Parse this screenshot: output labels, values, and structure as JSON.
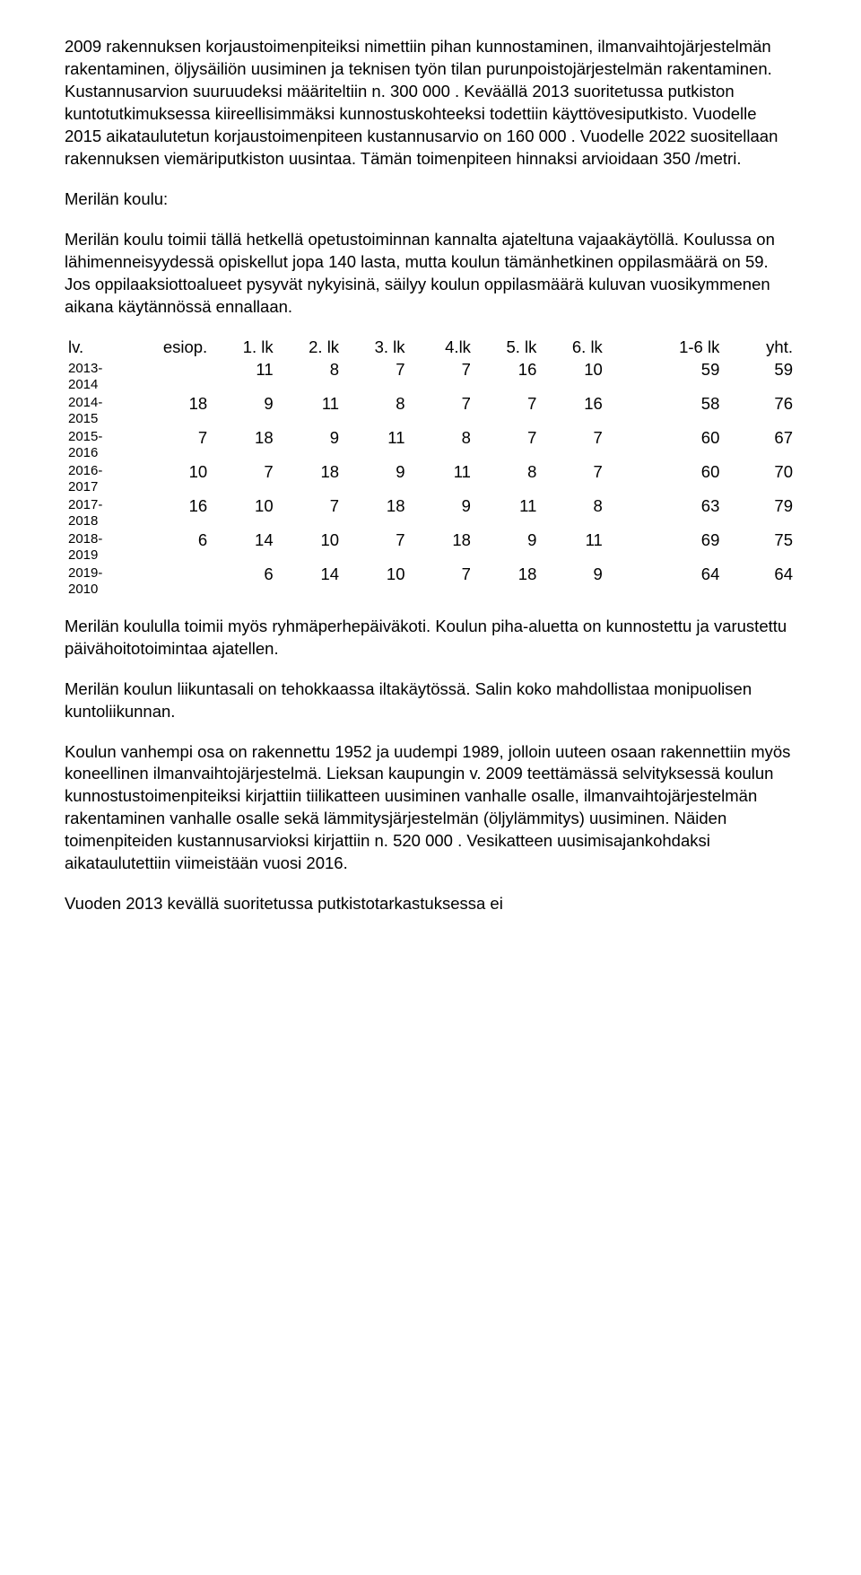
{
  "paragraphs": {
    "p1": "2009 rakennuksen korjaustoimenpiteiksi nimettiin pihan kunnostaminen, ilmanvaihtojärjestelmän rakentaminen, öljysäiliön uusiminen ja teknisen työn tilan purunpoistojärjestelmän rakentaminen. Kustannusarvion suuruudeksi määriteltiin n. 300 000 . Keväällä 2013 suoritetussa putkiston kuntotutkimuksessa kiireellisimmäksi kunnostuskohteeksi todettiin käyttövesiputkisto. Vuodelle 2015 aikataulutetun korjaustoimenpiteen kustannusarvio on 160 000 . Vuodelle 2022 suositellaan rakennuksen viemäriputkiston uusintaa. Tämän toimenpiteen hinnaksi arvioidaan 350 /metri.",
    "p2": "Merilän koulu:",
    "p3": "Merilän koulu toimii tällä hetkellä opetustoiminnan kannalta ajateltuna vajaakäytöllä. Koulussa on lähimenneisyydessä opiskellut jopa 140 lasta, mutta koulun tämänhetkinen oppilasmäärä on 59. Jos oppilaaksiottoalueet pysyvät nykyisinä, säilyy koulun oppilasmäärä kuluvan vuosikymmenen aikana käytännössä ennallaan.",
    "p4": "Merilän koululla toimii myös ryhmäperhepäiväkoti. Koulun piha-aluetta on kunnostettu ja varustettu päivähoitotoimintaa ajatellen.",
    "p5": "Merilän koulun liikuntasali on tehokkaassa iltakäytössä. Salin koko mahdollistaa monipuolisen kuntoliikunnan.",
    "p6": "Koulun vanhempi osa on rakennettu 1952 ja uudempi 1989, jolloin uuteen osaan rakennettiin myös koneellinen ilmanvaihtojärjestelmä. Lieksan kaupungin v. 2009 teettämässä selvityksessä koulun kunnostustoimenpiteiksi kirjattiin tiilikatteen uusiminen vanhalle osalle, ilmanvaihtojärjestelmän rakentaminen vanhalle osalle sekä lämmitysjärjestelmän (öljylämmitys) uusiminen. Näiden toimenpiteiden kustannusarvioksi kirjattiin n. 520 000 . Vesikatteen uusimisajankohdaksi aikataulutettiin viimeistään vuosi 2016.",
    "p7": "Vuoden 2013 kevällä suoritetussa putkistotarkastuksessa ei"
  },
  "table": {
    "headers": {
      "lv": "lv.",
      "esiop": "esiop.",
      "c1": "1. lk",
      "c2": "2. lk",
      "c3": "3. lk",
      "c4": "4.lk",
      "c5": "5. lk",
      "c6": "6. lk",
      "sum": "1-6 lk",
      "yht": "yht."
    },
    "rows": [
      {
        "label_a": "2013-",
        "label_b": "2014",
        "esiop": "",
        "c1": "11",
        "c2": "8",
        "c3": "7",
        "c4": "7",
        "c5": "16",
        "c6": "10",
        "sum": "59",
        "yht": "59"
      },
      {
        "label_a": "2014-",
        "label_b": "2015",
        "esiop": "18",
        "c1": "9",
        "c2": "11",
        "c3": "8",
        "c4": "7",
        "c5": "7",
        "c6": "16",
        "sum": "58",
        "yht": "76"
      },
      {
        "label_a": "2015-",
        "label_b": "2016",
        "esiop": "7",
        "c1": "18",
        "c2": "9",
        "c3": "11",
        "c4": "8",
        "c5": "7",
        "c6": "7",
        "sum": "60",
        "yht": "67"
      },
      {
        "label_a": "2016-",
        "label_b": "2017",
        "esiop": "10",
        "c1": "7",
        "c2": "18",
        "c3": "9",
        "c4": "11",
        "c5": "8",
        "c6": "7",
        "sum": "60",
        "yht": "70"
      },
      {
        "label_a": "2017-",
        "label_b": "2018",
        "esiop": "16",
        "c1": "10",
        "c2": "7",
        "c3": "18",
        "c4": "9",
        "c5": "11",
        "c6": "8",
        "sum": "63",
        "yht": "79"
      },
      {
        "label_a": "2018-",
        "label_b": "2019",
        "esiop": "6",
        "c1": "14",
        "c2": "10",
        "c3": "7",
        "c4": "18",
        "c5": "9",
        "c6": "11",
        "sum": "69",
        "yht": "75"
      },
      {
        "label_a": "2019-",
        "label_b": "2010",
        "esiop": "",
        "c1": "6",
        "c2": "14",
        "c3": "10",
        "c4": "7",
        "c5": "18",
        "c6": "9",
        "sum": "64",
        "yht": "64"
      }
    ]
  }
}
